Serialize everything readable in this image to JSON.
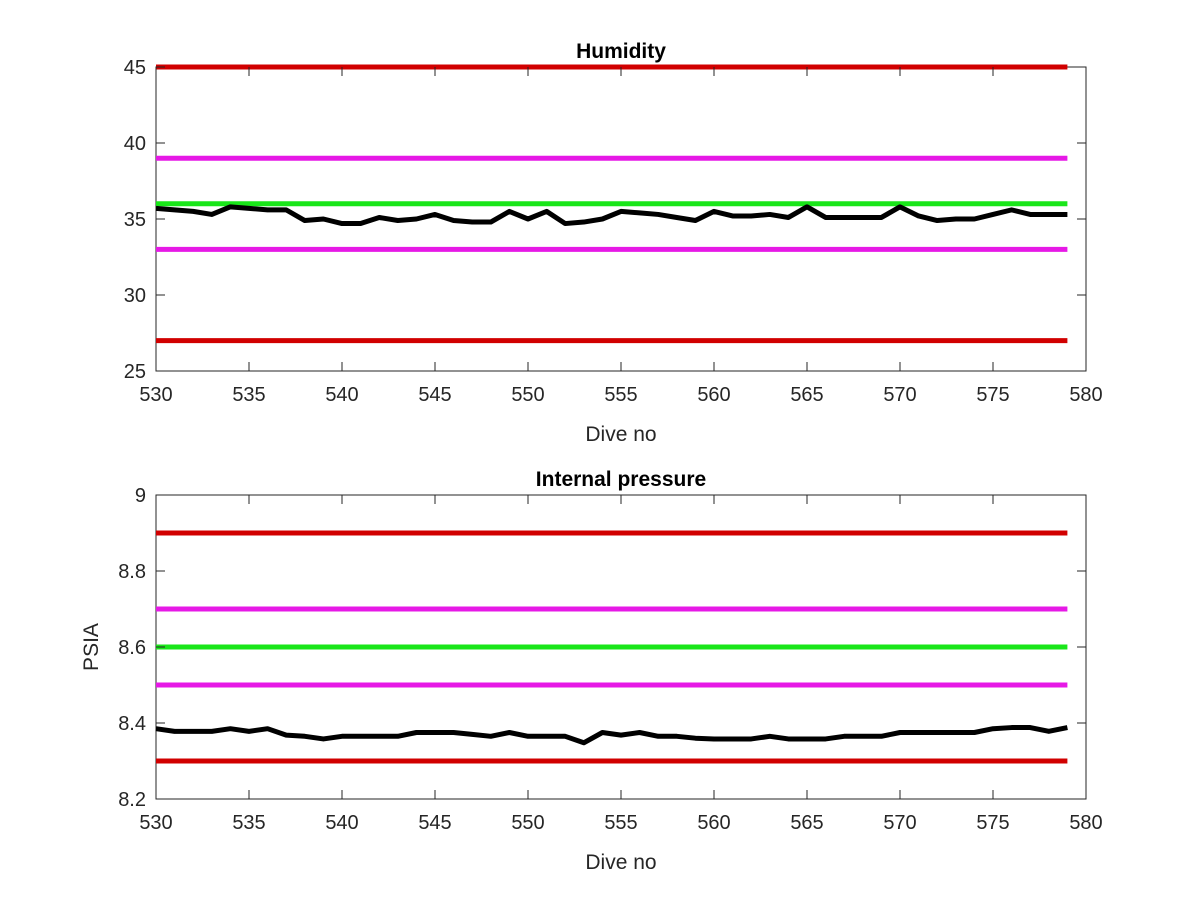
{
  "chart_data": [
    {
      "type": "line",
      "title": "Humidity",
      "xlabel": "Dive no",
      "ylabel": "",
      "xlim": [
        530,
        580
      ],
      "ylim": [
        25,
        45
      ],
      "xticks": [
        530,
        535,
        540,
        545,
        550,
        555,
        560,
        565,
        570,
        575,
        580
      ],
      "yticks": [
        25,
        30,
        35,
        40,
        45
      ],
      "grid": false,
      "hlines": [
        {
          "y": 45,
          "color": "#d10000"
        },
        {
          "y": 39,
          "color": "#e619e6"
        },
        {
          "y": 36,
          "color": "#19e619"
        },
        {
          "y": 33,
          "color": "#e619e6"
        },
        {
          "y": 27,
          "color": "#d10000"
        }
      ],
      "series": [
        {
          "color": "#000000",
          "x": [
            530,
            531,
            532,
            533,
            534,
            535,
            536,
            537,
            538,
            539,
            540,
            541,
            542,
            543,
            544,
            545,
            546,
            547,
            548,
            549,
            550,
            551,
            552,
            553,
            554,
            555,
            556,
            557,
            558,
            559,
            560,
            561,
            562,
            563,
            564,
            565,
            566,
            567,
            568,
            569,
            570,
            571,
            572,
            573,
            574,
            575,
            576,
            577,
            578,
            579
          ],
          "y": [
            35.7,
            35.6,
            35.5,
            35.3,
            35.8,
            35.7,
            35.6,
            35.6,
            34.9,
            35.0,
            34.7,
            34.7,
            35.1,
            34.9,
            35.0,
            35.3,
            34.9,
            34.8,
            34.8,
            35.5,
            35.0,
            35.5,
            34.7,
            34.8,
            35.0,
            35.5,
            35.4,
            35.3,
            35.1,
            34.9,
            35.5,
            35.2,
            35.2,
            35.3,
            35.1,
            35.8,
            35.1,
            35.1,
            35.1,
            35.1,
            35.8,
            35.2,
            34.9,
            35.0,
            35.0,
            35.3,
            35.6,
            35.3,
            35.3,
            35.3
          ]
        }
      ]
    },
    {
      "type": "line",
      "title": "Internal pressure",
      "xlabel": "Dive no",
      "ylabel": "PSIA",
      "xlim": [
        530,
        580
      ],
      "ylim": [
        8.2,
        9.0
      ],
      "xticks": [
        530,
        535,
        540,
        545,
        550,
        555,
        560,
        565,
        570,
        575,
        580
      ],
      "yticks": [
        8.2,
        8.4,
        8.6,
        8.8,
        9
      ],
      "ytick_labels": [
        "8.2",
        "8.4",
        "8.6",
        "8.8",
        "9"
      ],
      "grid": false,
      "hlines": [
        {
          "y": 8.9,
          "color": "#d10000"
        },
        {
          "y": 8.7,
          "color": "#e619e6"
        },
        {
          "y": 8.6,
          "color": "#19e619"
        },
        {
          "y": 8.5,
          "color": "#e619e6"
        },
        {
          "y": 8.3,
          "color": "#d10000"
        }
      ],
      "series": [
        {
          "color": "#000000",
          "x": [
            530,
            531,
            532,
            533,
            534,
            535,
            536,
            537,
            538,
            539,
            540,
            541,
            542,
            543,
            544,
            545,
            546,
            547,
            548,
            549,
            550,
            551,
            552,
            553,
            554,
            555,
            556,
            557,
            558,
            559,
            560,
            561,
            562,
            563,
            564,
            565,
            566,
            567,
            568,
            569,
            570,
            571,
            572,
            573,
            574,
            575,
            576,
            577,
            578,
            579
          ],
          "y": [
            8.385,
            8.378,
            8.378,
            8.378,
            8.385,
            8.378,
            8.385,
            8.368,
            8.365,
            8.358,
            8.365,
            8.365,
            8.365,
            8.365,
            8.375,
            8.375,
            8.375,
            8.37,
            8.365,
            8.375,
            8.365,
            8.365,
            8.365,
            8.348,
            8.375,
            8.368,
            8.375,
            8.365,
            8.365,
            8.36,
            8.358,
            8.358,
            8.358,
            8.365,
            8.358,
            8.358,
            8.358,
            8.365,
            8.365,
            8.365,
            8.375,
            8.375,
            8.375,
            8.375,
            8.375,
            8.385,
            8.388,
            8.388,
            8.378,
            8.388
          ]
        }
      ]
    }
  ]
}
